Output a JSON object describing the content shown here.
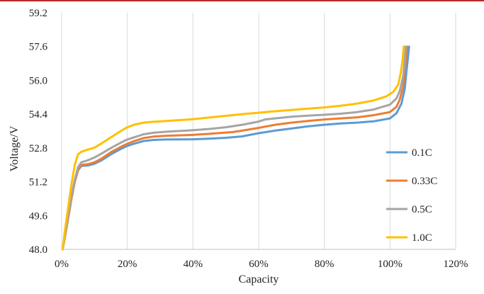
{
  "accent_rule_color": "#b8282c",
  "chart_data": {
    "type": "line",
    "title": "",
    "xlabel": "Capacity",
    "ylabel": "Voltage/V",
    "xlim": [
      0,
      120
    ],
    "ylim": [
      48.0,
      59.2
    ],
    "x_ticks": [
      0,
      20,
      40,
      60,
      80,
      100,
      120
    ],
    "x_tick_labels": [
      "0%",
      "20%",
      "40%",
      "60%",
      "80%",
      "100%",
      "120%"
    ],
    "y_ticks": [
      48.0,
      49.6,
      51.2,
      52.8,
      54.4,
      56.0,
      57.6,
      59.2
    ],
    "y_tick_labels": [
      "48.0",
      "49.6",
      "51.2",
      "52.8",
      "54.4",
      "56.0",
      "57.6",
      "59.2"
    ],
    "grid": "vertical",
    "legend_position": "right",
    "series": [
      {
        "name": "0.1C",
        "color": "#5b9bd5",
        "points": [
          [
            0.3,
            48.0
          ],
          [
            1,
            48.6
          ],
          [
            2,
            49.5
          ],
          [
            3,
            50.4
          ],
          [
            4,
            51.2
          ],
          [
            5,
            51.75
          ],
          [
            6,
            51.95
          ],
          [
            8,
            51.97
          ],
          [
            10,
            52.05
          ],
          [
            12,
            52.2
          ],
          [
            15,
            52.5
          ],
          [
            18,
            52.75
          ],
          [
            20,
            52.9
          ],
          [
            22,
            53.0
          ],
          [
            25,
            53.13
          ],
          [
            28,
            53.18
          ],
          [
            32,
            53.2
          ],
          [
            40,
            53.21
          ],
          [
            45,
            53.24
          ],
          [
            50,
            53.28
          ],
          [
            55,
            53.35
          ],
          [
            60,
            53.5
          ],
          [
            65,
            53.62
          ],
          [
            70,
            53.72
          ],
          [
            75,
            53.82
          ],
          [
            80,
            53.9
          ],
          [
            85,
            53.96
          ],
          [
            90,
            54.0
          ],
          [
            95,
            54.06
          ],
          [
            100,
            54.2
          ],
          [
            102,
            54.45
          ],
          [
            103.5,
            54.9
          ],
          [
            104.5,
            55.6
          ],
          [
            105,
            56.4
          ],
          [
            105.5,
            57.1
          ],
          [
            105.8,
            57.6
          ]
        ]
      },
      {
        "name": "0.33C",
        "color": "#ed7d31",
        "points": [
          [
            0.3,
            48.0
          ],
          [
            1,
            48.6
          ],
          [
            2,
            49.5
          ],
          [
            3,
            50.4
          ],
          [
            4,
            51.2
          ],
          [
            5,
            51.75
          ],
          [
            6,
            52.0
          ],
          [
            8,
            52.03
          ],
          [
            10,
            52.12
          ],
          [
            12,
            52.28
          ],
          [
            15,
            52.6
          ],
          [
            18,
            52.85
          ],
          [
            20,
            53.0
          ],
          [
            22,
            53.12
          ],
          [
            25,
            53.27
          ],
          [
            28,
            53.34
          ],
          [
            32,
            53.38
          ],
          [
            40,
            53.42
          ],
          [
            45,
            53.47
          ],
          [
            50,
            53.53
          ],
          [
            52,
            53.55
          ],
          [
            55,
            53.62
          ],
          [
            60,
            53.75
          ],
          [
            65,
            53.9
          ],
          [
            70,
            54.0
          ],
          [
            75,
            54.08
          ],
          [
            80,
            54.15
          ],
          [
            85,
            54.2
          ],
          [
            90,
            54.25
          ],
          [
            95,
            54.35
          ],
          [
            100,
            54.5
          ],
          [
            102,
            54.75
          ],
          [
            103,
            55.1
          ],
          [
            104,
            55.7
          ],
          [
            104.5,
            56.5
          ],
          [
            105,
            57.2
          ],
          [
            105.2,
            57.6
          ]
        ]
      },
      {
        "name": "0.5C",
        "color": "#a5a5a5",
        "points": [
          [
            0.3,
            48.0
          ],
          [
            1,
            48.7
          ],
          [
            2,
            49.6
          ],
          [
            3,
            50.5
          ],
          [
            4,
            51.3
          ],
          [
            5,
            51.9
          ],
          [
            6,
            52.12
          ],
          [
            8,
            52.22
          ],
          [
            10,
            52.35
          ],
          [
            12,
            52.52
          ],
          [
            15,
            52.8
          ],
          [
            18,
            53.05
          ],
          [
            20,
            53.2
          ],
          [
            22,
            53.3
          ],
          [
            25,
            53.45
          ],
          [
            28,
            53.52
          ],
          [
            32,
            53.57
          ],
          [
            40,
            53.64
          ],
          [
            45,
            53.7
          ],
          [
            50,
            53.78
          ],
          [
            55,
            53.9
          ],
          [
            60,
            54.05
          ],
          [
            62,
            54.15
          ],
          [
            65,
            54.2
          ],
          [
            70,
            54.28
          ],
          [
            75,
            54.33
          ],
          [
            80,
            54.37
          ],
          [
            85,
            54.42
          ],
          [
            90,
            54.5
          ],
          [
            95,
            54.62
          ],
          [
            100,
            54.85
          ],
          [
            102,
            55.15
          ],
          [
            103,
            55.5
          ],
          [
            104,
            56.2
          ],
          [
            104.5,
            57.0
          ],
          [
            104.8,
            57.6
          ]
        ]
      },
      {
        "name": "1.0C",
        "color": "#ffc000",
        "points": [
          [
            0.3,
            48.0
          ],
          [
            1,
            48.9
          ],
          [
            2,
            50.0
          ],
          [
            3,
            51.1
          ],
          [
            4,
            52.0
          ],
          [
            5,
            52.5
          ],
          [
            6,
            52.62
          ],
          [
            8,
            52.72
          ],
          [
            10,
            52.82
          ],
          [
            12,
            53.0
          ],
          [
            15,
            53.3
          ],
          [
            18,
            53.6
          ],
          [
            20,
            53.78
          ],
          [
            22,
            53.9
          ],
          [
            25,
            54.0
          ],
          [
            28,
            54.04
          ],
          [
            32,
            54.08
          ],
          [
            40,
            54.16
          ],
          [
            45,
            54.24
          ],
          [
            50,
            54.32
          ],
          [
            55,
            54.4
          ],
          [
            60,
            54.47
          ],
          [
            65,
            54.54
          ],
          [
            70,
            54.6
          ],
          [
            75,
            54.66
          ],
          [
            80,
            54.72
          ],
          [
            85,
            54.8
          ],
          [
            90,
            54.9
          ],
          [
            95,
            55.05
          ],
          [
            99,
            55.25
          ],
          [
            101,
            55.45
          ],
          [
            102.5,
            55.8
          ],
          [
            103.2,
            56.3
          ],
          [
            103.8,
            56.9
          ],
          [
            104.2,
            57.6
          ]
        ]
      }
    ]
  }
}
